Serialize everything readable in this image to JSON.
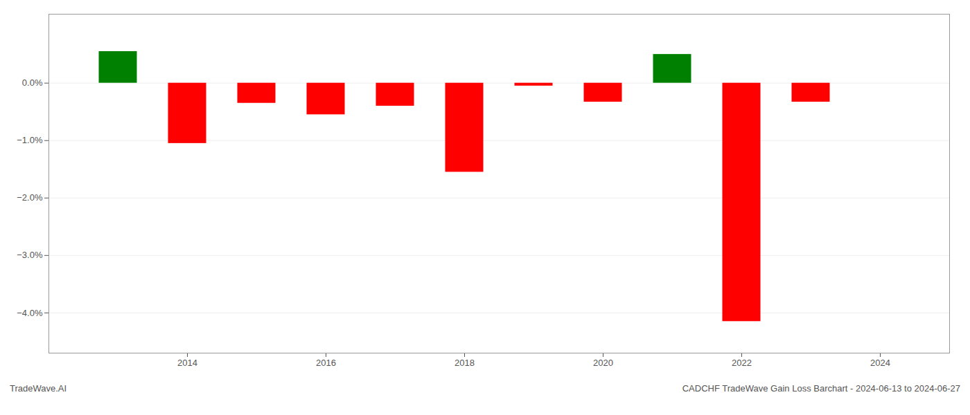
{
  "chart_data": {
    "type": "bar",
    "x": [
      2013,
      2014,
      2015,
      2016,
      2017,
      2018,
      2019,
      2020,
      2021,
      2022,
      2023
    ],
    "values": [
      0.0055,
      -0.0105,
      -0.0035,
      -0.0055,
      -0.004,
      -0.0155,
      -0.0005,
      -0.0033,
      0.005,
      -0.0415,
      -0.0033
    ],
    "colors": [
      "#008000",
      "#ff0000",
      "#ff0000",
      "#ff0000",
      "#ff0000",
      "#ff0000",
      "#ff0000",
      "#ff0000",
      "#008000",
      "#ff0000",
      "#ff0000"
    ],
    "xlim": [
      2012.0,
      2025.0
    ],
    "xticks": [
      2014,
      2016,
      2018,
      2020,
      2022,
      2024
    ],
    "ylim": [
      -0.047,
      0.012
    ],
    "yticks": [
      {
        "value": 0.0,
        "label": "0.0%"
      },
      {
        "value": -0.01,
        "label": "−1.0%"
      },
      {
        "value": -0.02,
        "label": "−2.0%"
      },
      {
        "value": -0.03,
        "label": "−3.0%"
      },
      {
        "value": -0.04,
        "label": "−4.0%"
      }
    ],
    "grid": true,
    "annotations": [
      "TradeWave.AI",
      "CADCHF TradeWave Gain Loss Barchart - 2024-06-13 to 2024-06-27"
    ]
  }
}
